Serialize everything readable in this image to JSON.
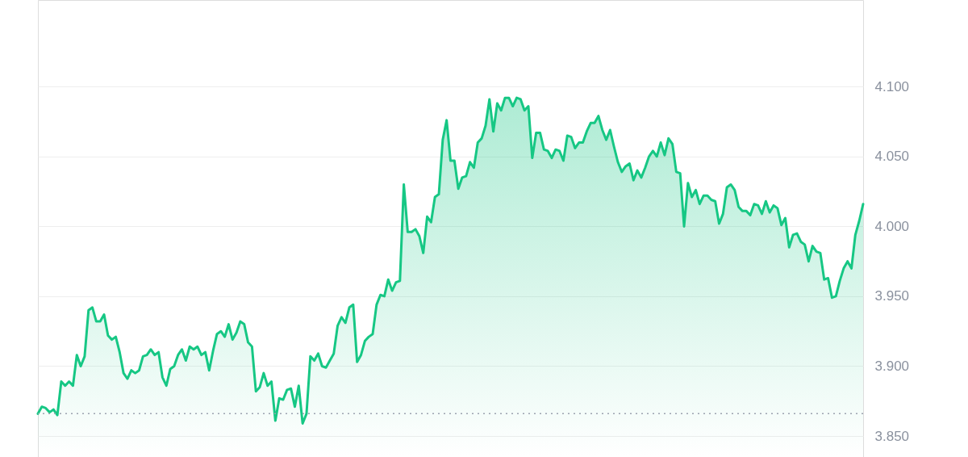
{
  "chart_data": {
    "type": "area",
    "categories": [
      null,
      null,
      null,
      null,
      null,
      null,
      null,
      null,
      null,
      null,
      null,
      null,
      null,
      null,
      null,
      null,
      null,
      null,
      null,
      null,
      null,
      null,
      null,
      null,
      null,
      null,
      null,
      null,
      null,
      null,
      null,
      null,
      null,
      null,
      null,
      null,
      null,
      null,
      null,
      null,
      null,
      null,
      null,
      null,
      null,
      null,
      null,
      null,
      null,
      null,
      null,
      null,
      null,
      null,
      null,
      null,
      null,
      null,
      null,
      null,
      null,
      null,
      null,
      null,
      null,
      null,
      null,
      null,
      null,
      null,
      null,
      null,
      null,
      null,
      null,
      null,
      null,
      null,
      null,
      null,
      null,
      null,
      null,
      null,
      null,
      null,
      null,
      null,
      null,
      null,
      null,
      null,
      null,
      null,
      null,
      null,
      null,
      null,
      null,
      null,
      null,
      null,
      null,
      null,
      null,
      null,
      null,
      null,
      null,
      null,
      null,
      null,
      null,
      null,
      null,
      null,
      null,
      null,
      null,
      null,
      null,
      null,
      null,
      null,
      null,
      null,
      null,
      null,
      null,
      null,
      null,
      null,
      null,
      null,
      null,
      null,
      null,
      null,
      null,
      null,
      null,
      null,
      null,
      null,
      null,
      null,
      null,
      null,
      null,
      null,
      null,
      null,
      null,
      null,
      null,
      null,
      null,
      null,
      null,
      null,
      null,
      null,
      null,
      null,
      null,
      null,
      null,
      null,
      null,
      null,
      null,
      null,
      null,
      null,
      null,
      null,
      null,
      null,
      null,
      null,
      null,
      null,
      null,
      null,
      null,
      null,
      null,
      null,
      null,
      null,
      null,
      null,
      null,
      null,
      null,
      null,
      null,
      null,
      null,
      null,
      null,
      null,
      null,
      null,
      null,
      null,
      null,
      null,
      null,
      null,
      null,
      null,
      null
    ],
    "series": [
      {
        "color": "#16c784",
        "values": [
          3.866,
          3.871,
          3.87,
          3.867,
          3.869,
          3.865,
          3.889,
          3.886,
          3.889,
          3.886,
          3.908,
          3.9,
          3.907,
          3.94,
          3.942,
          3.932,
          3.932,
          3.937,
          3.922,
          3.919,
          3.921,
          3.91,
          3.895,
          3.891,
          3.897,
          3.895,
          3.897,
          3.907,
          3.908,
          3.912,
          3.908,
          3.91,
          3.892,
          3.886,
          3.898,
          3.9,
          3.908,
          3.912,
          3.904,
          3.914,
          3.912,
          3.914,
          3.908,
          3.91,
          3.897,
          3.911,
          3.923,
          3.925,
          3.921,
          3.93,
          3.919,
          3.924,
          3.932,
          3.93,
          3.917,
          3.914,
          3.882,
          3.885,
          3.895,
          3.886,
          3.889,
          3.861,
          3.877,
          3.876,
          3.883,
          3.884,
          3.871,
          3.886,
          3.859,
          3.866,
          3.907,
          3.904,
          3.909,
          3.9,
          3.899,
          3.904,
          3.909,
          3.929,
          3.935,
          3.931,
          3.942,
          3.944,
          3.903,
          3.908,
          3.918,
          3.921,
          3.923,
          3.944,
          3.951,
          3.95,
          3.962,
          3.954,
          3.96,
          3.961,
          4.03,
          3.996,
          3.996,
          3.998,
          3.993,
          3.981,
          4.007,
          4.003,
          4.021,
          4.023,
          4.062,
          4.076,
          4.047,
          4.047,
          4.027,
          4.035,
          4.036,
          4.046,
          4.042,
          4.06,
          4.063,
          4.072,
          4.091,
          4.068,
          4.088,
          4.083,
          4.092,
          4.092,
          4.086,
          4.092,
          4.091,
          4.083,
          4.086,
          4.049,
          4.067,
          4.067,
          4.055,
          4.054,
          4.049,
          4.055,
          4.054,
          4.047,
          4.065,
          4.064,
          4.056,
          4.06,
          4.06,
          4.068,
          4.074,
          4.074,
          4.079,
          4.069,
          4.062,
          4.069,
          4.057,
          4.046,
          4.039,
          4.043,
          4.045,
          4.033,
          4.04,
          4.035,
          4.042,
          4.05,
          4.054,
          4.05,
          4.06,
          4.051,
          4.063,
          4.059,
          4.039,
          4.038,
          4.0,
          4.031,
          4.021,
          4.026,
          4.016,
          4.022,
          4.022,
          4.019,
          4.018,
          4.002,
          4.009,
          4.028,
          4.03,
          4.026,
          4.014,
          4.011,
          4.011,
          4.008,
          4.016,
          4.015,
          4.009,
          4.018,
          4.01,
          4.015,
          4.013,
          4.001,
          4.006,
          3.985,
          3.994,
          3.995,
          3.989,
          3.987,
          3.975,
          3.986,
          3.982,
          3.981,
          3.962,
          3.963,
          3.949,
          3.95,
          3.961,
          3.97,
          3.975,
          3.97,
          3.994,
          4.004,
          4.016
        ]
      }
    ],
    "ylim": [
      3.835,
      4.162
    ],
    "yticks": [
      {
        "value": 3.85,
        "label": "3.850"
      },
      {
        "value": 3.9,
        "label": "3.900"
      },
      {
        "value": 3.95,
        "label": "3.950"
      },
      {
        "value": 4.0,
        "label": "4.000"
      },
      {
        "value": 4.05,
        "label": "4.050"
      },
      {
        "value": 4.1,
        "label": "4.100"
      }
    ],
    "ref_lines": [
      {
        "axis": "y",
        "value": 3.866,
        "color": "#9ca3af",
        "line_style": "dotted"
      }
    ],
    "grid": "y",
    "tick_labels": "y"
  }
}
